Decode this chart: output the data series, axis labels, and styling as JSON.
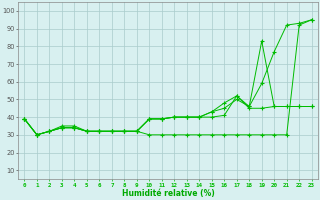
{
  "title": "",
  "xlabel": "Humidité relative (%)",
  "ylabel": "",
  "bg_color": "#d8f0f0",
  "grid_color": "#aacccc",
  "line_color": "#00bb00",
  "xlim": [
    -0.5,
    23.5
  ],
  "ylim": [
    5,
    105
  ],
  "yticks": [
    10,
    20,
    30,
    40,
    50,
    60,
    70,
    80,
    90,
    100
  ],
  "xticks": [
    0,
    1,
    2,
    3,
    4,
    5,
    6,
    7,
    8,
    9,
    10,
    11,
    12,
    13,
    14,
    15,
    16,
    17,
    18,
    19,
    20,
    21,
    22,
    23
  ],
  "series": [
    [
      39,
      30,
      32,
      35,
      35,
      32,
      32,
      32,
      32,
      32,
      30,
      30,
      30,
      30,
      30,
      30,
      30,
      30,
      30,
      30,
      30,
      30,
      92,
      95
    ],
    [
      39,
      30,
      32,
      34,
      34,
      32,
      32,
      32,
      32,
      32,
      39,
      39,
      40,
      40,
      40,
      40,
      41,
      52,
      46,
      59,
      77,
      92,
      93,
      95
    ],
    [
      39,
      30,
      32,
      34,
      34,
      32,
      32,
      32,
      32,
      32,
      39,
      39,
      40,
      40,
      40,
      43,
      48,
      52,
      45,
      45,
      46,
      46,
      46,
      46
    ],
    [
      39,
      30,
      32,
      34,
      34,
      32,
      32,
      32,
      32,
      32,
      39,
      39,
      40,
      40,
      40,
      43,
      45,
      50,
      46,
      83,
      46,
      46,
      46,
      46
    ]
  ]
}
